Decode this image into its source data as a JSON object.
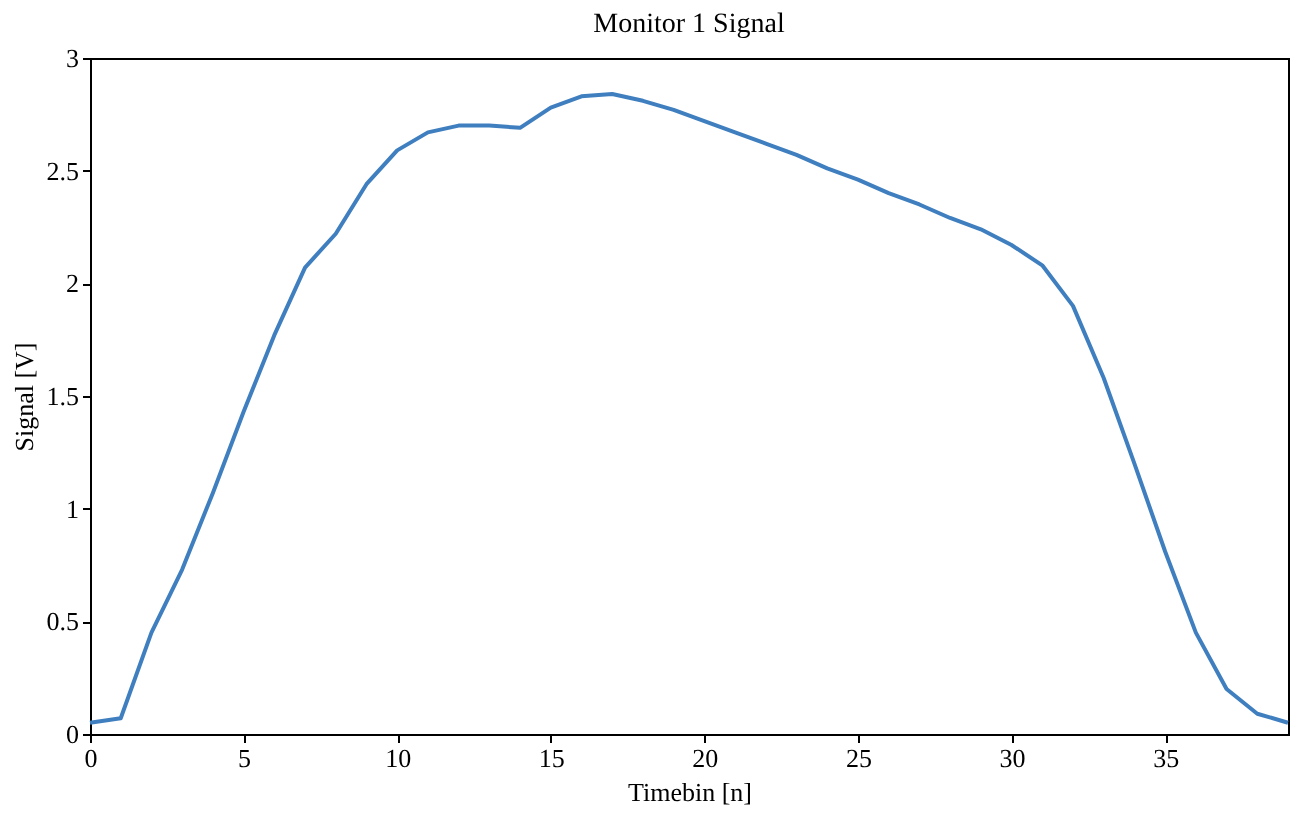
{
  "chart_data": {
    "type": "line",
    "title": "Monitor 1 Signal",
    "xlabel": "Timebin [n]",
    "ylabel": "Signal [V]",
    "x": [
      0,
      1,
      2,
      3,
      4,
      5,
      6,
      7,
      8,
      9,
      10,
      11,
      12,
      13,
      14,
      15,
      16,
      17,
      18,
      19,
      20,
      21,
      22,
      23,
      24,
      25,
      26,
      27,
      28,
      29,
      30,
      31,
      32,
      33,
      34,
      35,
      36,
      37,
      38,
      39
    ],
    "series": [
      {
        "color": "#3f7fbf",
        "values": [
          0.05,
          0.07,
          0.45,
          0.73,
          1.07,
          1.43,
          1.77,
          2.07,
          2.22,
          2.44,
          2.59,
          2.67,
          2.7,
          2.7,
          2.69,
          2.78,
          2.83,
          2.84,
          2.81,
          2.77,
          2.72,
          2.67,
          2.62,
          2.57,
          2.51,
          2.46,
          2.4,
          2.35,
          2.29,
          2.24,
          2.17,
          2.08,
          1.9,
          1.58,
          1.2,
          0.81,
          0.45,
          0.2,
          0.09,
          0.05
        ]
      }
    ],
    "xlim": [
      0,
      39
    ],
    "ylim": [
      0,
      3
    ],
    "xticks": [
      0,
      5,
      10,
      15,
      20,
      25,
      30,
      35
    ],
    "yticks": [
      0,
      0.5,
      1,
      1.5,
      2,
      2.5,
      3
    ],
    "grid": false,
    "legend": false,
    "marker": "none",
    "line_style": "solid"
  }
}
